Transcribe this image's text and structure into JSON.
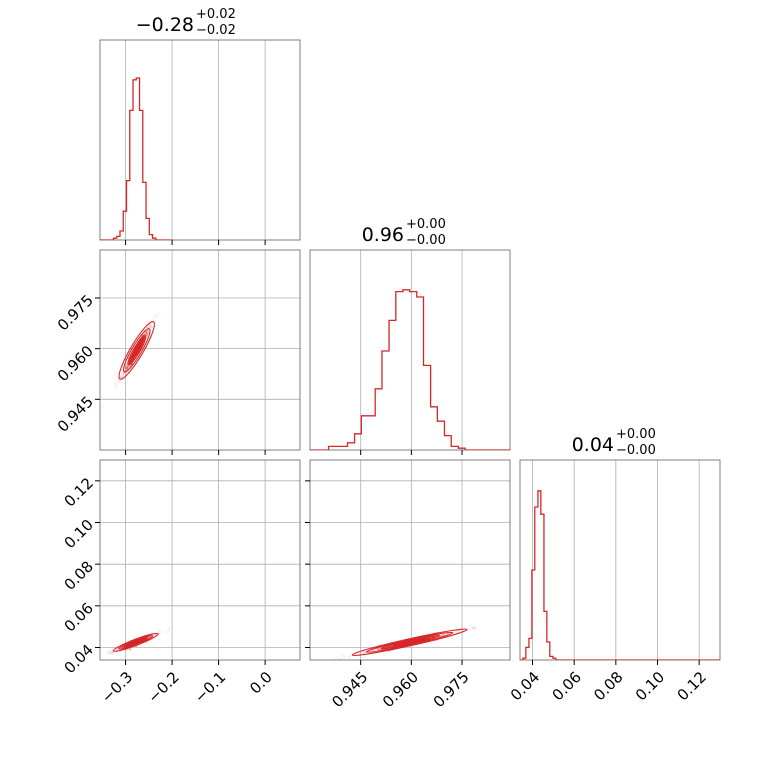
{
  "chart_data": {
    "type": "corner",
    "color": "#d62728",
    "parameters": [
      {
        "id": "p0",
        "range": [
          -0.355,
          0.075
        ],
        "ticks": [
          -0.3,
          -0.2,
          -0.1,
          0.0
        ],
        "tick_labels": [
          "−0.3",
          "−0.2",
          "−0.1",
          "0.0"
        ],
        "title": {
          "value": "−0.28",
          "plus": "+0.02",
          "minus": "−0.02"
        }
      },
      {
        "id": "p1",
        "range": [
          0.93,
          0.9892
        ],
        "ticks": [
          0.945,
          0.96,
          0.975
        ],
        "tick_labels": [
          "0.945",
          "0.960",
          "0.975"
        ],
        "title": {
          "value": "0.96",
          "plus": "+0.00",
          "minus": "−0.00"
        }
      },
      {
        "id": "p2",
        "range": [
          0.034,
          0.13
        ],
        "ticks": [
          0.04,
          0.06,
          0.08,
          0.1,
          0.12
        ],
        "tick_labels": [
          "0.04",
          "0.06",
          "0.08",
          "0.10",
          "0.12"
        ],
        "title": {
          "value": "0.04",
          "plus": "+0.00",
          "minus": "−0.00"
        }
      }
    ],
    "histograms": [
      {
        "param": 0,
        "bin_edges": [
          -0.355,
          -0.347,
          -0.34,
          -0.333,
          -0.326,
          -0.319,
          -0.312,
          -0.305,
          -0.298,
          -0.291,
          -0.284,
          -0.277,
          -0.27,
          -0.263,
          -0.256,
          -0.249,
          -0.242,
          -0.235,
          -0.228,
          -0.221,
          -0.214,
          -0.2
        ],
        "counts": [
          0,
          0,
          0,
          0,
          0.01,
          0.02,
          0.05,
          0.16,
          0.33,
          0.72,
          0.89,
          0.9,
          0.72,
          0.32,
          0.12,
          0.03,
          0.01,
          0,
          0,
          0,
          0
        ]
      },
      {
        "param": 1,
        "bin_edges": [
          0.93,
          0.9355,
          0.9411,
          0.9432,
          0.9452,
          0.9472,
          0.9493,
          0.9513,
          0.9534,
          0.9554,
          0.9575,
          0.9595,
          0.9616,
          0.9636,
          0.9657,
          0.9677,
          0.9698,
          0.9718,
          0.9739,
          0.9759,
          0.978,
          0.9892
        ],
        "counts": [
          0,
          0.02,
          0.04,
          0.09,
          0.19,
          0.19,
          0.34,
          0.55,
          0.72,
          0.88,
          0.89,
          0.88,
          0.85,
          0.47,
          0.24,
          0.16,
          0.08,
          0.02,
          0.01,
          0,
          0
        ]
      },
      {
        "param": 2,
        "bin_edges": [
          0.034,
          0.0354,
          0.0368,
          0.0383,
          0.0397,
          0.0411,
          0.0426,
          0.044,
          0.0455,
          0.0469,
          0.0483,
          0.0498,
          0.0512,
          0.13
        ],
        "counts": [
          0,
          0.01,
          0.07,
          0.12,
          0.5,
          0.85,
          0.94,
          0.81,
          0.27,
          0.1,
          0.02,
          0.01,
          0
        ]
      }
    ],
    "joint": [
      {
        "x": 0,
        "y": 1,
        "mean": [
          -0.276,
          0.9595
        ],
        "slope": 0.235,
        "spread_major": 0.018,
        "spread_minor": 0.0008
      },
      {
        "x": 0,
        "y": 2,
        "mean": [
          -0.278,
          0.0425
        ],
        "slope": 0.085,
        "spread_major": 0.024,
        "spread_minor": 0.0006
      },
      {
        "x": 1,
        "y": 2,
        "mean": [
          0.9595,
          0.0425
        ],
        "slope": 0.36,
        "spread_major": 0.0085,
        "spread_minor": 0.0007
      }
    ],
    "grid": true
  }
}
